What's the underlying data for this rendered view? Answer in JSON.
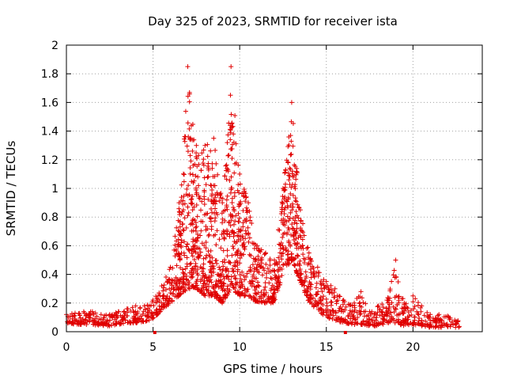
{
  "chart_data": {
    "type": "scatter",
    "title": "Day 325 of 2023, SRMTID for receiver ista",
    "xlabel": "GPS time / hours",
    "ylabel": "SRMTID / TECUs",
    "xlim": [
      0,
      24
    ],
    "ylim": [
      0,
      2
    ],
    "xticks": [
      0,
      5,
      10,
      15,
      20
    ],
    "yticks": [
      0,
      0.2,
      0.4,
      0.6,
      0.8,
      1,
      1.2,
      1.4,
      1.6,
      1.8,
      2
    ],
    "xtick_labels": [
      "0",
      "5",
      "10",
      "15",
      "20"
    ],
    "ytick_labels": [
      "0",
      "0.2",
      "0.4",
      "0.6",
      "0.8",
      "1",
      "1.2",
      "1.4",
      "1.6",
      "1.8",
      "2"
    ],
    "grid": true,
    "marker": "+",
    "color": "#e00000",
    "axis_markers_x": [
      5.1,
      16.1
    ],
    "envelope_points": [
      [
        0.0,
        0.05,
        0.12
      ],
      [
        0.5,
        0.05,
        0.13
      ],
      [
        1.0,
        0.05,
        0.14
      ],
      [
        1.5,
        0.05,
        0.14
      ],
      [
        2.0,
        0.04,
        0.12
      ],
      [
        2.5,
        0.04,
        0.12
      ],
      [
        3.0,
        0.05,
        0.14
      ],
      [
        3.5,
        0.06,
        0.16
      ],
      [
        4.0,
        0.06,
        0.18
      ],
      [
        4.5,
        0.07,
        0.18
      ],
      [
        5.0,
        0.09,
        0.22
      ],
      [
        5.5,
        0.15,
        0.32
      ],
      [
        6.0,
        0.2,
        0.45
      ],
      [
        6.5,
        0.25,
        0.9
      ],
      [
        7.0,
        0.3,
        1.85
      ],
      [
        7.5,
        0.3,
        1.3
      ],
      [
        8.0,
        0.25,
        1.3
      ],
      [
        8.5,
        0.25,
        1.35
      ],
      [
        9.0,
        0.2,
        0.9
      ],
      [
        9.5,
        0.3,
        1.85
      ],
      [
        10.0,
        0.25,
        1.1
      ],
      [
        10.5,
        0.25,
        0.9
      ],
      [
        11.0,
        0.2,
        0.6
      ],
      [
        11.5,
        0.2,
        0.55
      ],
      [
        12.0,
        0.2,
        0.5
      ],
      [
        12.5,
        0.4,
        1.0
      ],
      [
        13.0,
        0.5,
        1.6
      ],
      [
        13.5,
        0.35,
        0.85
      ],
      [
        14.0,
        0.2,
        0.55
      ],
      [
        14.5,
        0.15,
        0.45
      ],
      [
        15.0,
        0.1,
        0.35
      ],
      [
        15.5,
        0.08,
        0.3
      ],
      [
        16.0,
        0.06,
        0.22
      ],
      [
        16.5,
        0.05,
        0.18
      ],
      [
        17.0,
        0.05,
        0.28
      ],
      [
        17.5,
        0.04,
        0.14
      ],
      [
        18.0,
        0.04,
        0.18
      ],
      [
        18.5,
        0.06,
        0.22
      ],
      [
        19.0,
        0.06,
        0.5
      ],
      [
        19.5,
        0.04,
        0.2
      ],
      [
        20.0,
        0.05,
        0.25
      ],
      [
        20.5,
        0.04,
        0.18
      ],
      [
        21.0,
        0.03,
        0.12
      ],
      [
        21.5,
        0.03,
        0.12
      ],
      [
        22.0,
        0.03,
        0.11
      ],
      [
        22.7,
        0.03,
        0.08
      ]
    ]
  }
}
